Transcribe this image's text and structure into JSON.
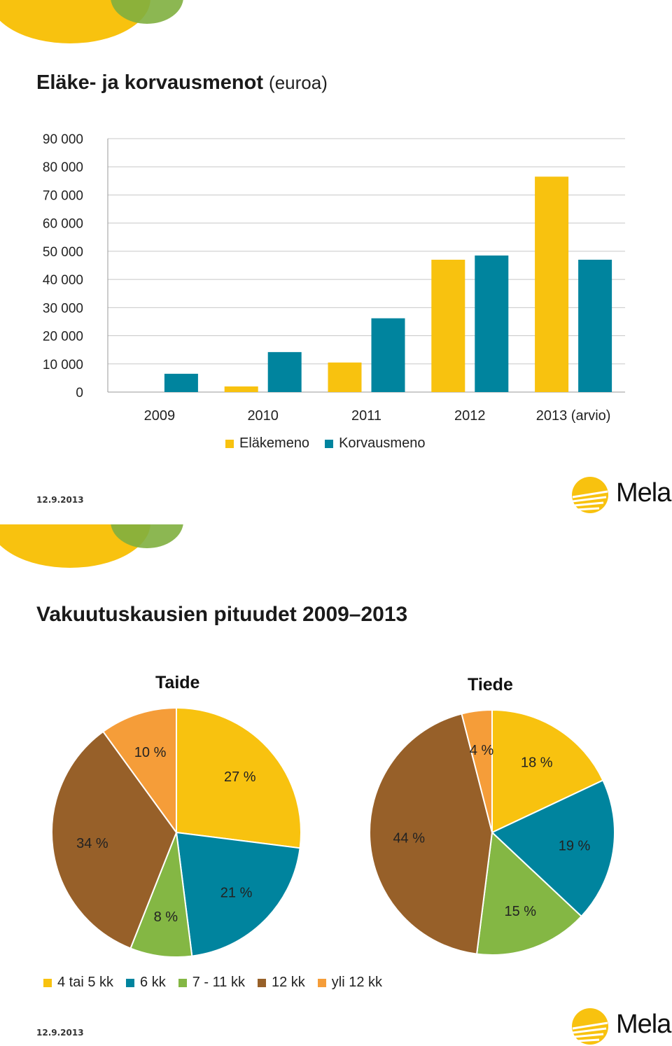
{
  "colors": {
    "yellow": "#F8C20F",
    "teal": "#00849E",
    "green": "#84B744",
    "brown": "#976029",
    "orange": "#F59D39",
    "olive": "#7FAF3F"
  },
  "slide1": {
    "title_main": "Eläke- ja korvausmenot",
    "title_sub": "(euroa)",
    "date": "12.9.2013",
    "logo_text": "Mela"
  },
  "slide2": {
    "title": "Vakuutuskausien pituudet 2009–2013",
    "date": "12.9.2013",
    "logo_text": "Mela"
  },
  "chart_data": [
    {
      "type": "bar",
      "title": "Eläke- ja korvausmenot (euroa)",
      "categories": [
        "2009",
        "2010",
        "2011",
        "2012",
        "2013 (arvio)"
      ],
      "series": [
        {
          "name": "Eläkemeno",
          "color": "#F8C20F",
          "values": [
            0,
            2000,
            10500,
            47000,
            76500
          ]
        },
        {
          "name": "Korvausmeno",
          "color": "#00849E",
          "values": [
            6500,
            14200,
            26200,
            48500,
            47000
          ]
        }
      ],
      "ylim": [
        0,
        90000
      ],
      "yticks": [
        "0",
        "10 000",
        "20 000",
        "30 000",
        "40 000",
        "50 000",
        "60 000",
        "70 000",
        "80 000",
        "90 000"
      ],
      "grid": true,
      "legend_position": "bottom"
    },
    {
      "type": "pie",
      "title": "Taide",
      "categories": [
        "4 tai 5 kk",
        "6 kk",
        "7 - 11 kk",
        "12 kk",
        "yli 12 kk"
      ],
      "values": [
        27,
        21,
        8,
        34,
        10
      ],
      "labels": [
        "27 %",
        "21 %",
        "8 %",
        "34 %",
        "10 %"
      ]
    },
    {
      "type": "pie",
      "title": "Tiede",
      "categories": [
        "4 tai 5 kk",
        "6 kk",
        "7 - 11 kk",
        "12 kk",
        "yli 12 kk"
      ],
      "values": [
        18,
        19,
        15,
        44,
        4
      ],
      "labels": [
        "18 %",
        "19 %",
        "15 %",
        "44 %",
        "4 %"
      ]
    }
  ],
  "pie_legend": [
    {
      "label": "4 tai 5 kk",
      "color": "#F8C20F"
    },
    {
      "label": "6 kk",
      "color": "#00849E"
    },
    {
      "label": "7 - 11 kk",
      "color": "#84B744"
    },
    {
      "label": "12 kk",
      "color": "#976029"
    },
    {
      "label": "yli 12 kk",
      "color": "#F59D39"
    }
  ]
}
